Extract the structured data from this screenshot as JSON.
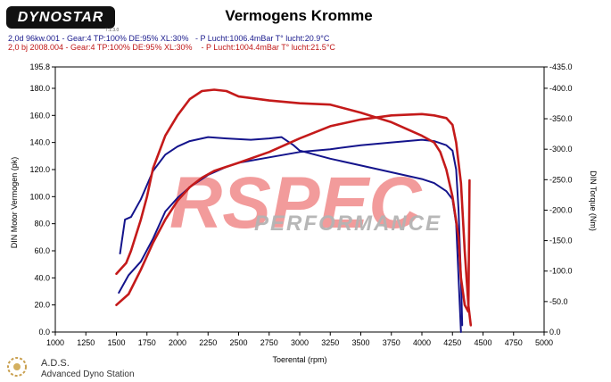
{
  "header": {
    "logo_text": "DYNOSTAR",
    "logo_sub": "7.1.3.0",
    "title": "Vermogens Kromme",
    "run1": "2,0d 96kw.001 - Gear:4 TP:100% DE:95% XL:30%   - P Lucht:1006.4mBar T° lucht:20.9°C",
    "run2": "2,0 bj 2008.004 - Gear:4 TP:100% DE:95% XL:30%    - P Lucht:1004.4mBar T° lucht:21.5°C"
  },
  "footer": {
    "brand": "A.D.S.",
    "subtitle": "Advanced Dyno Station"
  },
  "watermark": {
    "main": "RSPEC",
    "sub": "PERFORMANCE"
  },
  "colors": {
    "blue": "#14148c",
    "red": "#c41a1a",
    "watermark_red": "#f08a8a",
    "watermark_gray": "#b4b4b4"
  },
  "chart_data": {
    "type": "line",
    "xlabel": "Toerental (rpm)",
    "ylabel": "DIN Motor Vermogen (pk)",
    "y2label": "DIN Torque (Nm)",
    "xlim": [
      1000,
      5000
    ],
    "ylim": [
      0,
      195.8
    ],
    "y2lim": [
      0,
      435
    ],
    "x_ticks": [
      1000,
      1250,
      1500,
      1750,
      2000,
      2250,
      2500,
      2750,
      3000,
      3250,
      3500,
      3750,
      4000,
      4250,
      4500,
      4750,
      5000
    ],
    "y_ticks": [
      "0.0",
      "20.0",
      "40.0",
      "60.0",
      "80.0",
      "100.0",
      "120.0",
      "140.0",
      "160.0",
      "180.0",
      "195.8"
    ],
    "y2_ticks": [
      "0.0",
      "-50.0",
      "-100.0",
      "-150.0",
      "-200.0",
      "-250.0",
      "-300.0",
      "-350.0",
      "-400.0",
      "-435.0"
    ],
    "grid": false,
    "series": [
      {
        "name": "2,0d 96kw.001",
        "kind": "power",
        "color": "#14148c",
        "points": [
          [
            1520,
            29
          ],
          [
            1600,
            42
          ],
          [
            1700,
            52
          ],
          [
            1800,
            69
          ],
          [
            1900,
            89
          ],
          [
            2000,
            99
          ],
          [
            2100,
            107
          ],
          [
            2250,
            116
          ],
          [
            2400,
            122
          ],
          [
            2500,
            125
          ],
          [
            2750,
            129
          ],
          [
            3000,
            133
          ],
          [
            3250,
            135
          ],
          [
            3500,
            138
          ],
          [
            3750,
            140
          ],
          [
            4000,
            142
          ],
          [
            4100,
            141
          ],
          [
            4200,
            138
          ],
          [
            4250,
            134
          ],
          [
            4280,
            120
          ],
          [
            4300,
            90
          ],
          [
            4320,
            40
          ],
          [
            4330,
            5
          ]
        ]
      },
      {
        "name": "2,0d 96kw.001",
        "kind": "torque",
        "color": "#14148c",
        "points": [
          [
            1530,
            58
          ],
          [
            1570,
            83
          ],
          [
            1620,
            85
          ],
          [
            1700,
            98
          ],
          [
            1800,
            119
          ],
          [
            1900,
            131
          ],
          [
            2000,
            137
          ],
          [
            2100,
            141
          ],
          [
            2250,
            144
          ],
          [
            2400,
            143
          ],
          [
            2600,
            142
          ],
          [
            2750,
            143
          ],
          [
            2850,
            144
          ],
          [
            2950,
            138
          ],
          [
            3000,
            134
          ],
          [
            3250,
            128
          ],
          [
            3500,
            123
          ],
          [
            3750,
            118
          ],
          [
            4000,
            113
          ],
          [
            4100,
            110
          ],
          [
            4200,
            104
          ],
          [
            4250,
            98
          ],
          [
            4280,
            80
          ],
          [
            4300,
            40
          ],
          [
            4320,
            0
          ]
        ]
      },
      {
        "name": "2,0 bj 2008.004",
        "kind": "power",
        "color": "#c41a1a",
        "points": [
          [
            1500,
            20
          ],
          [
            1600,
            28
          ],
          [
            1700,
            46
          ],
          [
            1800,
            66
          ],
          [
            1900,
            83
          ],
          [
            2000,
            97
          ],
          [
            2100,
            107
          ],
          [
            2200,
            114
          ],
          [
            2300,
            119
          ],
          [
            2400,
            122
          ],
          [
            2500,
            125
          ],
          [
            2750,
            133
          ],
          [
            3000,
            143
          ],
          [
            3250,
            152
          ],
          [
            3500,
            157
          ],
          [
            3750,
            160
          ],
          [
            4000,
            161
          ],
          [
            4100,
            160
          ],
          [
            4200,
            158
          ],
          [
            4250,
            153
          ],
          [
            4280,
            140
          ],
          [
            4320,
            110
          ],
          [
            4350,
            60
          ],
          [
            4380,
            20
          ],
          [
            4400,
            5
          ]
        ]
      },
      {
        "name": "2,0 bj 2008.004",
        "kind": "torque",
        "color": "#c41a1a",
        "points": [
          [
            1500,
            43
          ],
          [
            1580,
            51
          ],
          [
            1620,
            60
          ],
          [
            1700,
            83
          ],
          [
            1750,
            100
          ],
          [
            1800,
            121
          ],
          [
            1900,
            145
          ],
          [
            2000,
            160
          ],
          [
            2100,
            172
          ],
          [
            2200,
            178
          ],
          [
            2300,
            179
          ],
          [
            2400,
            178
          ],
          [
            2500,
            174
          ],
          [
            2750,
            171
          ],
          [
            3000,
            169
          ],
          [
            3250,
            168
          ],
          [
            3500,
            162
          ],
          [
            3750,
            155
          ],
          [
            4000,
            145
          ],
          [
            4100,
            140
          ],
          [
            4150,
            133
          ],
          [
            4200,
            120
          ],
          [
            4250,
            100
          ],
          [
            4300,
            70
          ],
          [
            4320,
            40
          ],
          [
            4350,
            20
          ],
          [
            4380,
            15
          ],
          [
            4390,
            112
          ]
        ]
      }
    ]
  }
}
